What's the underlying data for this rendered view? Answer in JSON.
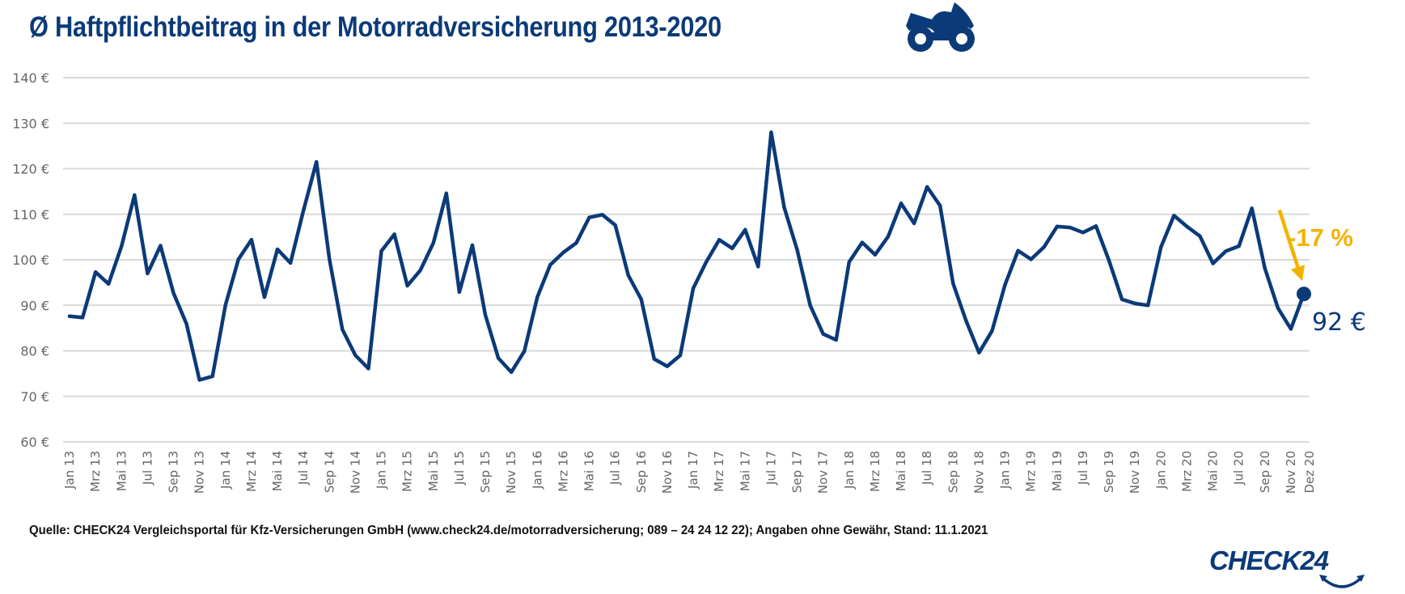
{
  "title": "Ø Haftpflichtbeitrag in der Motorradversicherung 2013-2020",
  "icons": {
    "title_icon": "motorcycle-icon",
    "logo_icon": "check24-smile-icon"
  },
  "colors": {
    "line": "#0b3a78",
    "accent": "#f2b300",
    "grid": "#d9d9d9",
    "tick_text": "#666666"
  },
  "source": "Quelle: CHECK24 Vergleichsportal für Kfz-Versicherungen GmbH (www.check24.de/motorradversicherung; 089 – 24 24 12 22); Angaben ohne Gewähr, Stand: 11.1.2021",
  "logo": {
    "text": "CHECK24"
  },
  "chart_data": {
    "type": "line",
    "title": "Ø Haftpflichtbeitrag in der Motorradversicherung 2013-2020",
    "xlabel": "",
    "ylabel": "",
    "ylim": [
      60,
      140
    ],
    "yticks": [
      60,
      70,
      80,
      90,
      100,
      110,
      120,
      130,
      140
    ],
    "ytick_labels": [
      "60 €",
      "70 €",
      "80 €",
      "90 €",
      "100 €",
      "110 €",
      "120 €",
      "130 €",
      "140 €"
    ],
    "grid": true,
    "xtick_labels": [
      "Jan 13",
      "Mrz 13",
      "Mai 13",
      "Jul 13",
      "Sep 13",
      "Nov 13",
      "Jan 14",
      "Mrz 14",
      "Mai 14",
      "Jul 14",
      "Sep 14",
      "Nov 14",
      "Jan 15",
      "Mrz 15",
      "Mai 15",
      "Jul 15",
      "Sep 15",
      "Nov 15",
      "Jan 16",
      "Mrz 16",
      "Mai 16",
      "Jul 16",
      "Sep 16",
      "Nov 16",
      "Jan 17",
      "Mrz 17",
      "Mai 17",
      "Jul 17",
      "Sep 17",
      "Nov 17",
      "Jan 18",
      "Mrz 18",
      "Mai 18",
      "Jul 18",
      "Sep 18",
      "Nov 18",
      "Jan 19",
      "Mrz 19",
      "Mai 19",
      "Jul 19",
      "Sep 19",
      "Nov 19",
      "Jan 20",
      "Mrz 20",
      "Mai 20",
      "Jul 20",
      "Sep 20",
      "Nov 20",
      "Dez 20"
    ],
    "xtick_month_index": [
      0,
      2,
      4,
      6,
      8,
      10,
      12,
      14,
      16,
      18,
      20,
      22,
      24,
      26,
      28,
      30,
      32,
      34,
      36,
      38,
      40,
      42,
      44,
      46,
      48,
      50,
      52,
      54,
      56,
      58,
      60,
      62,
      64,
      66,
      68,
      70,
      72,
      74,
      76,
      78,
      80,
      82,
      84,
      86,
      88,
      90,
      92,
      94,
      95
    ],
    "series": [
      {
        "name": "Ø Haftpflichtbeitrag",
        "unit": "€",
        "values": [
          87.6,
          87.3,
          97.3,
          94.7,
          103.0,
          114.2,
          97.0,
          103.1,
          92.7,
          85.9,
          73.6,
          74.4,
          90.1,
          100.1,
          104.4,
          91.8,
          102.3,
          99.3,
          110.8,
          121.5,
          100.1,
          84.7,
          79.0,
          76.1,
          101.9,
          105.6,
          94.3,
          97.7,
          103.7,
          114.6,
          92.9,
          103.2,
          87.9,
          78.4,
          75.3,
          79.9,
          91.8,
          98.9,
          101.6,
          103.7,
          109.3,
          109.9,
          107.6,
          96.6,
          91.3,
          78.2,
          76.6,
          79.0,
          93.7,
          99.5,
          104.4,
          102.5,
          106.6,
          98.5,
          128.0,
          111.5,
          102.2,
          90.0,
          83.7,
          82.4,
          99.5,
          103.8,
          101.1,
          105.1,
          112.4,
          108.0,
          116.0,
          111.9,
          94.8,
          86.6,
          79.6,
          84.4,
          94.5,
          102.0,
          100.1,
          102.8,
          107.3,
          107.1,
          106.0,
          107.4,
          99.8,
          91.3,
          90.4,
          90.0,
          102.8,
          109.7,
          107.3,
          105.2,
          99.2,
          101.9,
          103.0,
          111.3,
          98.1,
          89.4,
          84.8,
          92.5
        ]
      }
    ],
    "annotations": [
      {
        "text": "-17 %",
        "type": "arrow",
        "from_month_index": 91,
        "to_month_index": 95,
        "color": "#f2b300"
      },
      {
        "text": "92 €",
        "type": "end-label",
        "month_index": 95
      }
    ]
  }
}
